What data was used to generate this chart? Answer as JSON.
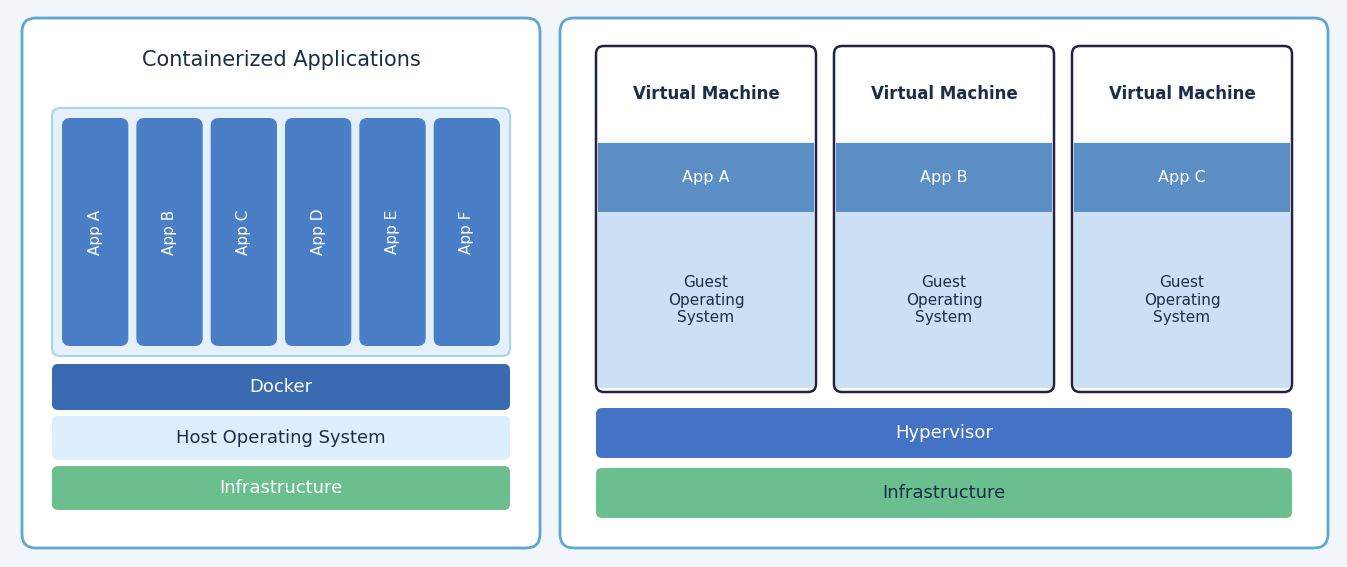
{
  "bg_color": "#f2f6fa",
  "panel_bg": "#ffffff",
  "panel_border_color": "#5ba8d4",
  "left_title": "Containerized Applications",
  "left_title_color": "#1a2e4a",
  "apps_left": [
    "App A",
    "App B",
    "App C",
    "App D",
    "App E",
    "App F"
  ],
  "app_box_color": "#4a7ec7",
  "app_text_color": "#ffffff",
  "container_border_color": "#a8d4ee",
  "container_bg": "#e4f1fa",
  "docker_color": "#3a6ab0",
  "docker_text": "Docker",
  "docker_text_color": "#ffffff",
  "host_os_color": "#ddeeff",
  "host_os_text": "Host Operating System",
  "host_os_text_color": "#1a2e4a",
  "infra_left_color": "#6bbf8e",
  "infra_left_text": "Infrastructure",
  "infra_left_text_color": "#ffffff",
  "vm_label": "Virtual Machine",
  "vm_label_color": "#1a2e4a",
  "vm_border_color": "#222244",
  "vm_bg": "#ffffff",
  "apps_right": [
    "App A",
    "App B",
    "App C"
  ],
  "app_right_color": "#5b8ec4",
  "app_right_text_color": "#ffffff",
  "guest_os_color": "#cce0f5",
  "guest_os_text": "Guest\nOperating\nSystem",
  "guest_os_text_color": "#1a2e4a",
  "hypervisor_color": "#4472c4",
  "hypervisor_text": "Hypervisor",
  "hypervisor_text_color": "#ffffff",
  "infra_right_color": "#6bbf8e",
  "infra_right_text": "Infrastructure",
  "infra_right_text_color": "#1a2e4a"
}
